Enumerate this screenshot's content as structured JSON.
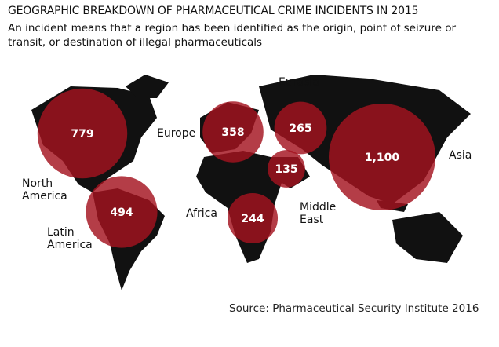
{
  "title": "GEOGRAPHIC BREAKDOWN OF PHARMACEUTICAL CRIME INCIDENTS IN 2015",
  "subtitle": "An incident means that a region has been identified as the origin, point of seizure or transit, or destination of illegal pharmaceuticals",
  "source": "Source: Pharmaceutical Security Institute 2016",
  "regions": [
    {
      "name": "North America",
      "value": 779
    },
    {
      "name": "Latin America",
      "value": 494
    },
    {
      "name": "Europe",
      "value": 358
    },
    {
      "name": "Eurasia",
      "value": 265
    },
    {
      "name": "Middle East",
      "value": 135
    },
    {
      "name": "Africa",
      "value": 244
    },
    {
      "name": "Asia",
      "value": 1100,
      "value_label": "1,100"
    }
  ]
}
